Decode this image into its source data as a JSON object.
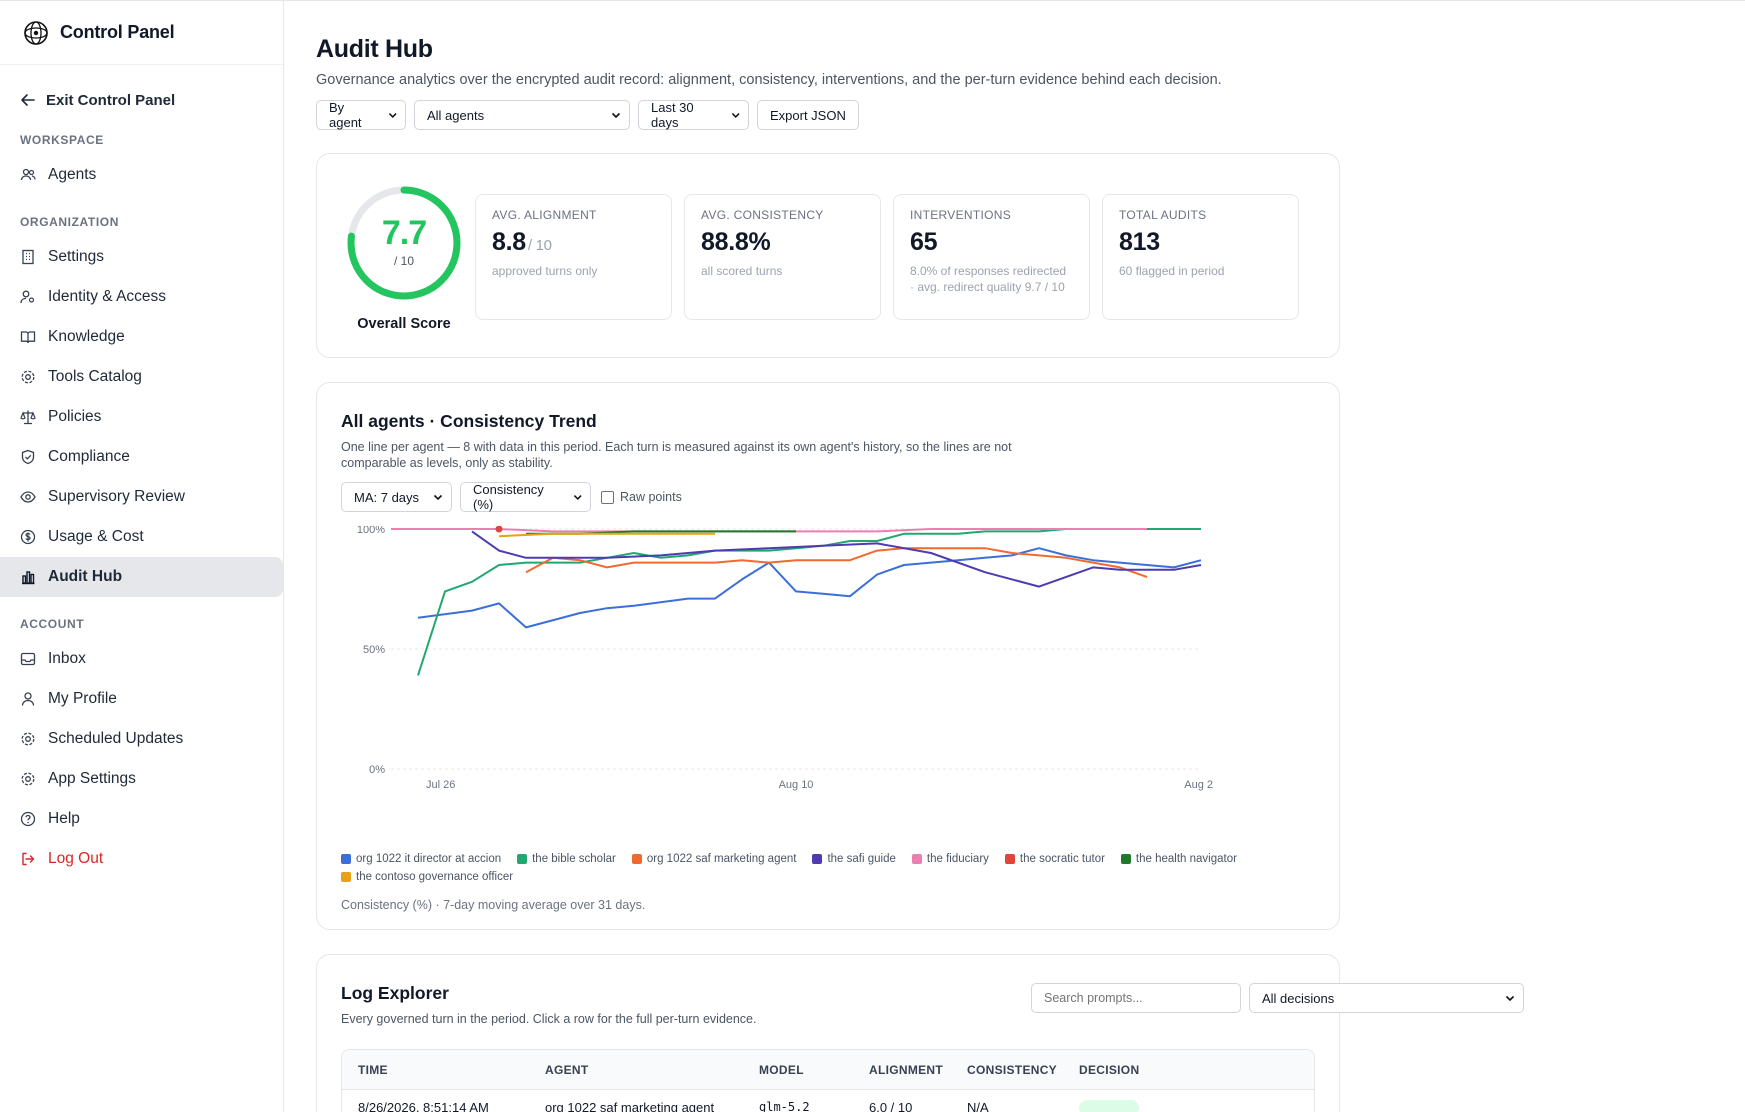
{
  "sidebar": {
    "brand": "Control Panel",
    "exit": "Exit Control Panel",
    "sections": {
      "workspace": "WORKSPACE",
      "organization": "ORGANIZATION",
      "account": "ACCOUNT"
    },
    "items": {
      "agents": "Agents",
      "settings": "Settings",
      "identity": "Identity & Access",
      "knowledge": "Knowledge",
      "tools": "Tools Catalog",
      "policies": "Policies",
      "compliance": "Compliance",
      "supervisory": "Supervisory Review",
      "usage": "Usage & Cost",
      "audit": "Audit Hub",
      "inbox": "Inbox",
      "profile": "My Profile",
      "scheduled": "Scheduled Updates",
      "app_settings": "App Settings",
      "help": "Help",
      "logout": "Log Out"
    },
    "active": "Audit Hub"
  },
  "header": {
    "title": "Audit Hub",
    "subtitle": "Governance analytics over the encrypted audit record: alignment, consistency, interventions, and the per-turn evidence behind each decision.",
    "group_by": "By agent",
    "agent_filter": "All agents",
    "range": "Last 30 days",
    "export": "Export JSON"
  },
  "score": {
    "value": "7.7",
    "denominator": "/ 10",
    "label": "Overall Score",
    "fraction": 0.77,
    "color": "#22c55e"
  },
  "stats": [
    {
      "label": "AVG. ALIGNMENT",
      "value": "8.8",
      "unit": "/ 10",
      "note": "approved turns only"
    },
    {
      "label": "AVG. CONSISTENCY",
      "value": "88.8%",
      "unit": "",
      "note": "all scored turns"
    },
    {
      "label": "INTERVENTIONS",
      "value": "65",
      "unit": "",
      "note": "8.0% of responses redirected · avg. redirect quality 9.7 / 10"
    },
    {
      "label": "TOTAL AUDITS",
      "value": "813",
      "unit": "",
      "note": "60 flagged in period"
    }
  ],
  "trend": {
    "title": "All agents · Consistency Trend",
    "subtitle": "One line per agent — 8 with data in this period. Each turn is measured against its own agent's history, so the lines are not comparable as levels, only as stability.",
    "ma": "MA: 7 days",
    "metric": "Consistency (%)",
    "raw_points": "Raw points",
    "note": "Consistency (%) · 7-day moving average over 31 days."
  },
  "chart_data": {
    "type": "line",
    "title": "All agents · Consistency Trend",
    "xlabel": "",
    "ylabel": "",
    "x_ticks": [
      "Jul 26",
      "Aug 10",
      "Aug 2"
    ],
    "y_ticks": [
      "0%",
      "50%",
      "100%"
    ],
    "ylim": [
      0,
      100
    ],
    "xlim": [
      0,
      30
    ],
    "grid": true,
    "legend": "bottom",
    "series": [
      {
        "name": "org 1022 it director at accion",
        "color": "#3b6fd8",
        "x": [
          1,
          3,
          4,
          5,
          7,
          8,
          9,
          11,
          12,
          13,
          14,
          15,
          16,
          17,
          18,
          19,
          20,
          21,
          22,
          23,
          24,
          25,
          26,
          27,
          28,
          29,
          30
        ],
        "y": [
          63,
          66,
          69,
          59,
          65,
          67,
          68,
          71,
          71,
          79,
          86,
          74,
          73,
          72,
          81,
          85,
          86,
          87,
          88,
          89,
          92,
          89,
          87,
          86,
          85,
          84,
          87
        ]
      },
      {
        "name": "the bible scholar",
        "color": "#1fa971",
        "x": [
          1,
          2,
          3,
          4,
          5,
          6,
          7,
          8,
          9,
          10,
          11,
          12,
          13,
          14,
          15,
          16,
          17,
          18,
          19,
          20,
          21,
          22,
          23,
          24,
          25,
          26,
          27,
          28,
          29,
          30
        ],
        "y": [
          39,
          74,
          78,
          85,
          86,
          86,
          86,
          88,
          90,
          88,
          89,
          91,
          91,
          91,
          92,
          93,
          95,
          95,
          98,
          98,
          98,
          99,
          99,
          99,
          100,
          100,
          100,
          100,
          100,
          100
        ]
      },
      {
        "name": "org 1022 saf marketing agent",
        "color": "#f06a30",
        "x": [
          5,
          6,
          7,
          8,
          9,
          10,
          11,
          12,
          13,
          14,
          15,
          16,
          17,
          18,
          19,
          20,
          21,
          22,
          23,
          24,
          25,
          26,
          27,
          28
        ],
        "y": [
          82,
          88,
          87,
          84,
          86,
          86,
          86,
          86,
          87,
          86,
          87,
          87,
          87,
          91,
          92,
          92,
          92,
          92,
          90,
          89,
          88,
          86,
          84,
          80
        ]
      },
      {
        "name": "the safi guide",
        "color": "#4f3ab0",
        "x": [
          3,
          4,
          5,
          6,
          8,
          10,
          12,
          14,
          16,
          18,
          20,
          22,
          24,
          26,
          27,
          28,
          29,
          30
        ],
        "y": [
          99,
          91,
          88,
          88,
          88,
          89,
          91,
          92,
          93,
          94,
          90,
          82,
          76,
          84,
          83,
          83,
          83,
          85
        ]
      },
      {
        "name": "the fiduciary",
        "color": "#ec7fb0",
        "x": [
          0,
          2,
          4,
          6,
          8,
          10,
          12,
          14,
          16,
          18,
          20,
          22,
          24,
          26,
          28
        ],
        "y": [
          100,
          100,
          100,
          99,
          99,
          99,
          99,
          99,
          99,
          99,
          100,
          100,
          100,
          100,
          100
        ]
      },
      {
        "name": "the socratic tutor",
        "color": "#e0443a",
        "x": [
          4
        ],
        "y": [
          100
        ]
      },
      {
        "name": "the health navigator",
        "color": "#1e7a2a",
        "x": [
          5,
          7,
          9,
          11,
          13,
          15
        ],
        "y": [
          98,
          98,
          99,
          99,
          99,
          99
        ]
      },
      {
        "name": "the contoso governance officer",
        "color": "#e7a21a",
        "x": [
          4,
          6,
          8,
          10,
          12
        ],
        "y": [
          97,
          98,
          98,
          98,
          98
        ]
      }
    ]
  },
  "log": {
    "title": "Log Explorer",
    "subtitle": "Every governed turn in the period. Click a row for the full per-turn evidence.",
    "search_placeholder": "Search prompts...",
    "decision_filter": "All decisions",
    "columns": [
      "TIME",
      "AGENT",
      "MODEL",
      "ALIGNMENT",
      "CONSISTENCY",
      "DECISION"
    ],
    "rows": [
      {
        "time": "8/26/2026, 8:51:14 AM",
        "agent": "org 1022 saf marketing agent",
        "model": "glm-5.2",
        "alignment": "6.0 / 10",
        "consistency": "N/A",
        "decision": ""
      }
    ]
  }
}
